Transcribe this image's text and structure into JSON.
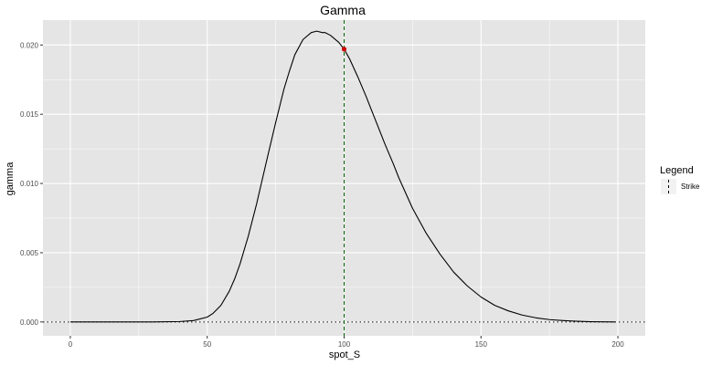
{
  "chart_data": {
    "type": "line",
    "title": "Gamma",
    "xlabel": "spot_S",
    "ylabel": "gamma",
    "xlim": [
      -10,
      210
    ],
    "ylim": [
      -0.001,
      0.0218
    ],
    "x_ticks": [
      0,
      50,
      100,
      150,
      200
    ],
    "x_tick_labels": [
      "0",
      "50",
      "100",
      "150",
      "200"
    ],
    "y_ticks": [
      0.0,
      0.005,
      0.01,
      0.015,
      0.02
    ],
    "y_tick_labels": [
      "0.000",
      "0.005",
      "0.010",
      "0.015",
      "0.020"
    ],
    "grid": true,
    "series": [
      {
        "x": [
          0,
          10,
          20,
          30,
          40,
          45,
          50,
          52,
          55,
          58,
          60,
          62,
          65,
          68,
          70,
          72,
          75,
          78,
          80,
          82,
          85,
          88,
          90,
          92,
          93,
          95,
          98,
          100,
          102,
          105,
          108,
          110,
          112,
          115,
          118,
          120,
          125,
          130,
          135,
          140,
          145,
          150,
          155,
          160,
          165,
          170,
          175,
          180,
          185,
          190,
          199
        ],
        "y": [
          0.0,
          0.0,
          0.0,
          0.0,
          3e-05,
          0.0001,
          0.00035,
          0.0006,
          0.0012,
          0.0022,
          0.0031,
          0.0042,
          0.0062,
          0.0085,
          0.0102,
          0.0119,
          0.0144,
          0.0168,
          0.0181,
          0.0193,
          0.0204,
          0.0209,
          0.021,
          0.0209,
          0.0209,
          0.0207,
          0.0202,
          0.0197,
          0.019,
          0.0177,
          0.0163,
          0.0153,
          0.0143,
          0.0128,
          0.0114,
          0.0104,
          0.0082,
          0.0064,
          0.0049,
          0.0036,
          0.0026,
          0.0018,
          0.0012,
          0.0008,
          0.0005,
          0.0003,
          0.00017,
          0.0001,
          5e-05,
          2e-05,
          0.0
        ]
      }
    ],
    "strike": {
      "x": 100,
      "label": "Strike",
      "color": "#006400"
    },
    "marker": {
      "x": 100,
      "y": 0.0197,
      "color": "#cc0000"
    },
    "zero_line": {
      "y": 0
    },
    "legend": {
      "title": "Legend",
      "placement": "right"
    },
    "colors": {
      "panel": "#e5e5e5",
      "grid": "#ffffff",
      "line": "#000000"
    }
  }
}
